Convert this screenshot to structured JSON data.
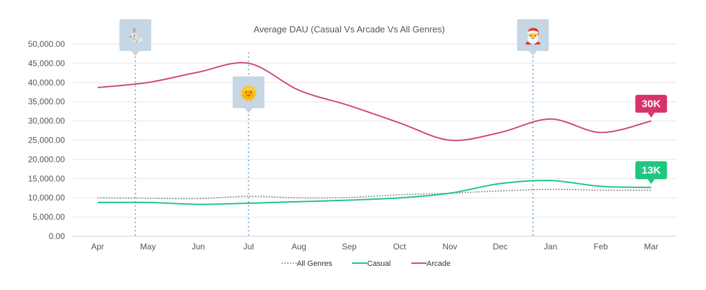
{
  "chart_data": {
    "type": "line",
    "title": "Average DAU (Casual Vs Arcade Vs All Genres)",
    "xlabel": "",
    "ylabel": "",
    "categories": [
      "Apr",
      "May",
      "Jun",
      "Jul",
      "Aug",
      "Sep",
      "Oct",
      "Nov",
      "Dec",
      "Jan",
      "Feb",
      "Mar"
    ],
    "y_ticks": [
      "0.00",
      "5,000.00",
      "10,000.00",
      "15,000.00",
      "20,000.00",
      "25,000.00",
      "30,000.00",
      "35,000.00",
      "40,000.00",
      "45,000.00",
      "50,000.00"
    ],
    "ylim": [
      0,
      50000
    ],
    "grid": true,
    "legend_position": "bottom",
    "series": [
      {
        "name": "All Genres",
        "color": "#888888",
        "style": "dotted",
        "values": [
          10000,
          9900,
          9800,
          10400,
          10000,
          10100,
          10800,
          11200,
          11800,
          12200,
          12000,
          12000
        ]
      },
      {
        "name": "Casual",
        "color": "#1fc77e",
        "style": "solid",
        "values": [
          8800,
          8800,
          8300,
          8600,
          9000,
          9400,
          10000,
          11200,
          13700,
          14500,
          13000,
          12700
        ]
      },
      {
        "name": "Arcade",
        "color": "#d14879",
        "style": "solid",
        "values": [
          38700,
          40000,
          42700,
          45000,
          38000,
          34000,
          29500,
          25000,
          27000,
          30500,
          27000,
          30000
        ]
      }
    ],
    "annotations": [
      {
        "name": "easter",
        "icon": "rabbit-icon",
        "emoji": "🐇",
        "after_category_index": 0,
        "position_fraction": 0.75
      },
      {
        "name": "summer",
        "icon": "sun-icon",
        "emoji": "🌞",
        "after_category_index": 3,
        "position_fraction": 0.0
      },
      {
        "name": "christmas",
        "icon": "santa-icon",
        "emoji": "🎅",
        "after_category_index": 8,
        "position_fraction": 0.65
      }
    ],
    "badges": [
      {
        "series": "Arcade",
        "label": "30K",
        "color": "#d6336c",
        "category_index": 11,
        "value": 30000
      },
      {
        "series": "Casual",
        "label": "13K",
        "color": "#1fc77e",
        "category_index": 11,
        "value": 12700
      }
    ]
  }
}
